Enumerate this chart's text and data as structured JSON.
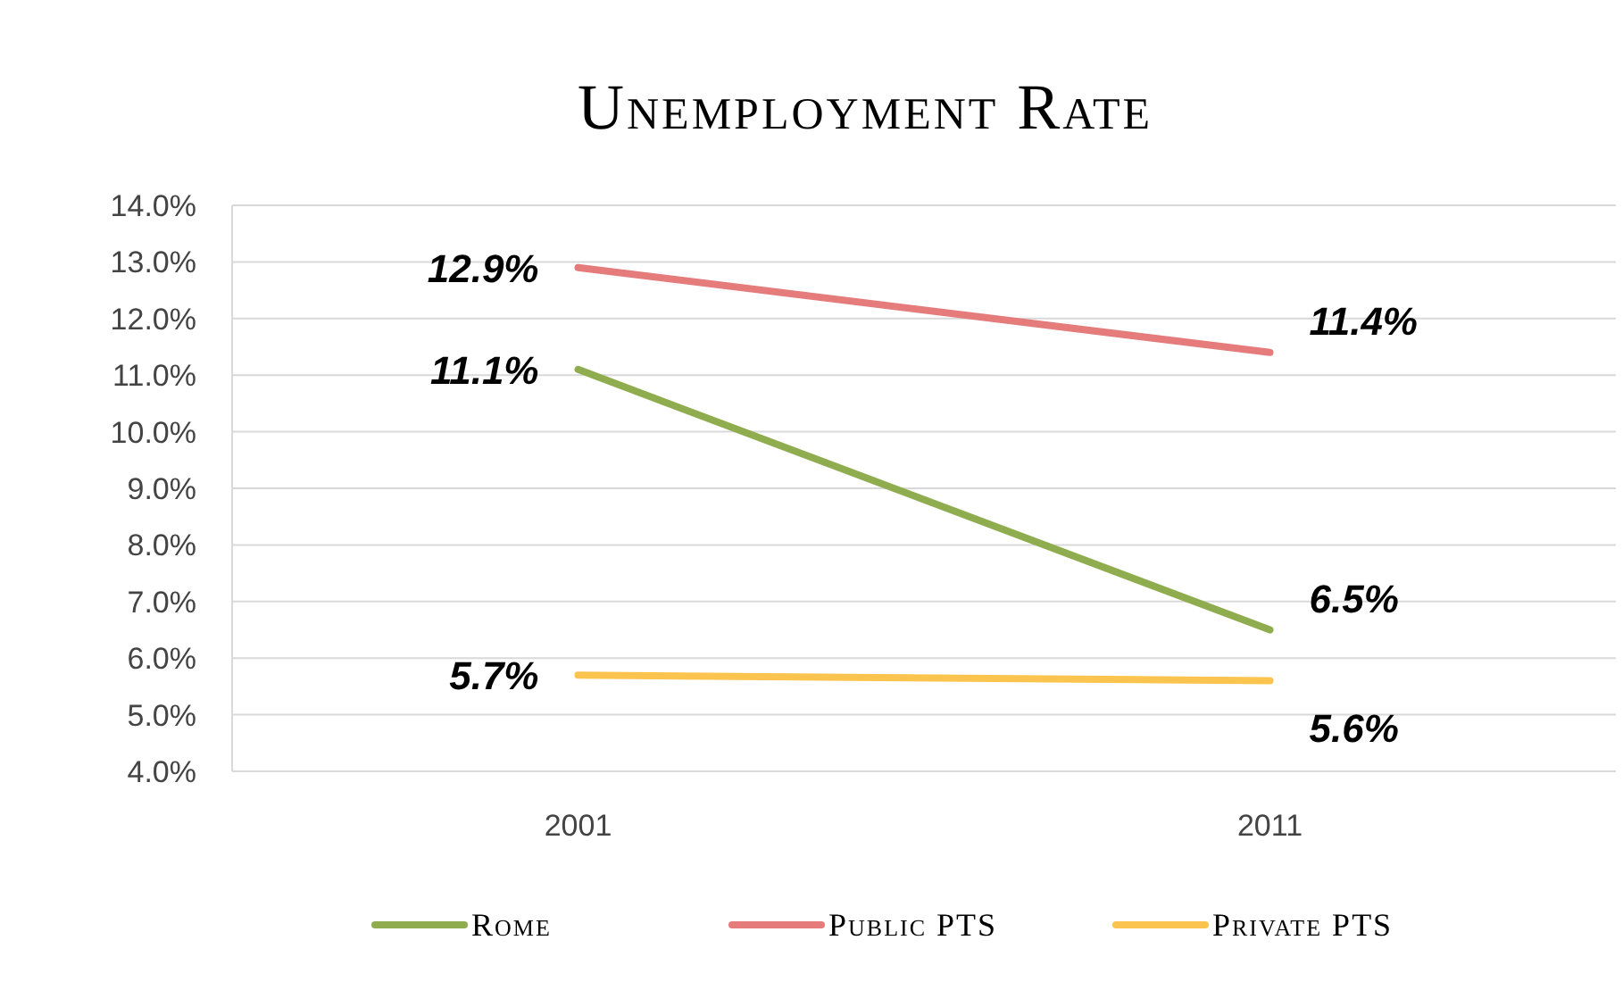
{
  "chart_data": {
    "type": "line",
    "title": "Unemployment Rate",
    "categories": [
      "2001",
      "2011"
    ],
    "series": [
      {
        "name": "Rome",
        "color": "#8fad4f",
        "values": [
          11.1,
          6.5
        ],
        "value_labels": [
          "11.1%",
          "6.5%"
        ]
      },
      {
        "name": "Public PTS",
        "color": "#e57b7b",
        "values": [
          12.9,
          11.4
        ],
        "value_labels": [
          "12.9%",
          "11.4%"
        ]
      },
      {
        "name": "Private PTS",
        "color": "#fbc44e",
        "values": [
          5.7,
          5.6
        ],
        "value_labels": [
          "5.7%",
          "5.6%"
        ]
      }
    ],
    "ylim": [
      4,
      14
    ],
    "yticks": [
      {
        "value": 4,
        "label": "4.0%"
      },
      {
        "value": 5,
        "label": "5.0%"
      },
      {
        "value": 6,
        "label": "6.0%"
      },
      {
        "value": 7,
        "label": "7.0%"
      },
      {
        "value": 8,
        "label": "8.0%"
      },
      {
        "value": 9,
        "label": "9.0%"
      },
      {
        "value": 10,
        "label": "10.0%"
      },
      {
        "value": 11,
        "label": "11.0%"
      },
      {
        "value": 12,
        "label": "12.0%"
      },
      {
        "value": 13,
        "label": "13.0%"
      },
      {
        "value": 14,
        "label": "14.0%"
      }
    ],
    "grid": "y",
    "legend": "bottom",
    "marker": "none",
    "line_style": "solid"
  }
}
